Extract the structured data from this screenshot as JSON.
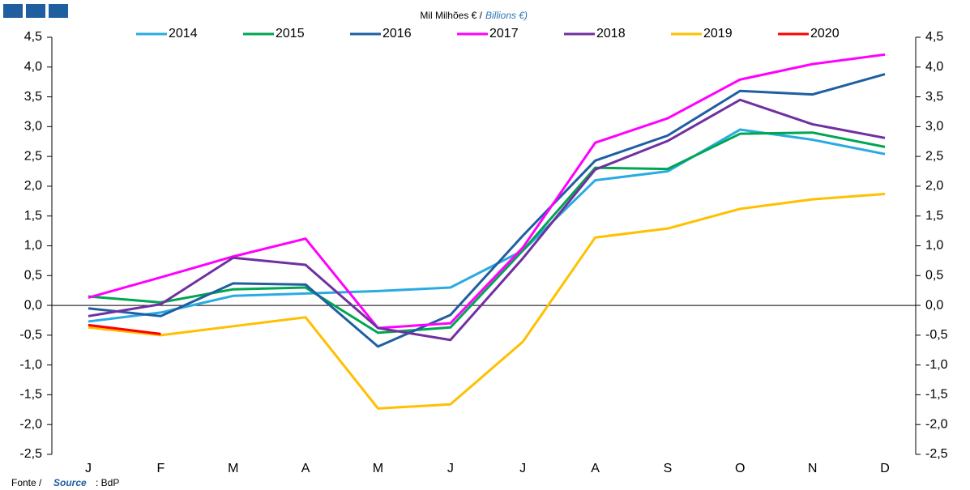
{
  "chart_data": {
    "type": "line",
    "title": "Mil Milhões € /",
    "title_en": "Billions €)",
    "source": {
      "label": "Fonte /",
      "label_en": "Source",
      "text": ": BdP"
    },
    "categories": [
      "J",
      "F",
      "M",
      "A",
      "M",
      "J",
      "J",
      "A",
      "S",
      "O",
      "N",
      "D"
    ],
    "series": [
      {
        "name": "2014",
        "color": "#29abe2",
        "values": [
          -0.27,
          -0.12,
          0.16,
          0.2,
          0.24,
          0.3,
          0.92,
          2.1,
          2.25,
          2.95,
          2.78,
          2.54
        ]
      },
      {
        "name": "2015",
        "color": "#00a651",
        "values": [
          0.15,
          0.05,
          0.27,
          0.3,
          -0.46,
          -0.37,
          0.92,
          2.31,
          2.29,
          2.88,
          2.9,
          2.66
        ]
      },
      {
        "name": "2016",
        "color": "#1f5fa0",
        "values": [
          -0.05,
          -0.18,
          0.37,
          0.35,
          -0.69,
          -0.16,
          1.17,
          2.43,
          2.85,
          3.6,
          3.54,
          3.88
        ]
      },
      {
        "name": "2017",
        "color": "#ff00ff",
        "values": [
          0.13,
          0.47,
          0.82,
          1.12,
          -0.38,
          -0.3,
          0.97,
          2.73,
          3.14,
          3.79,
          4.05,
          4.21
        ]
      },
      {
        "name": "2018",
        "color": "#7030a0",
        "values": [
          -0.18,
          0.02,
          0.8,
          0.68,
          -0.38,
          -0.58,
          0.79,
          2.28,
          2.76,
          3.45,
          3.04,
          2.81
        ]
      },
      {
        "name": "2019",
        "color": "#ffc000",
        "values": [
          -0.37,
          -0.5,
          -0.35,
          -0.2,
          -1.73,
          -1.66,
          -0.61,
          1.14,
          1.29,
          1.62,
          1.78,
          1.87
        ]
      },
      {
        "name": "2020",
        "color": "#ff0000",
        "values": [
          -0.33,
          -0.48,
          null,
          null,
          null,
          null,
          null,
          null,
          null,
          null,
          null,
          null
        ]
      }
    ],
    "ylim": [
      -2.5,
      4.5
    ],
    "yticks": [
      {
        "value": 4.5,
        "label": "4,5"
      },
      {
        "value": 4,
        "label": "4,0"
      },
      {
        "value": 3.5,
        "label": "3,5"
      },
      {
        "value": 3,
        "label": "3,0"
      },
      {
        "value": 2.5,
        "label": "2,5"
      },
      {
        "value": 2,
        "label": "2,0"
      },
      {
        "value": 1.5,
        "label": "1,5"
      },
      {
        "value": 1,
        "label": "1,0"
      },
      {
        "value": 0.5,
        "label": "0,5"
      },
      {
        "value": 0,
        "label": "0,0"
      },
      {
        "value": -0.5,
        "label": "-0,5"
      },
      {
        "value": -1,
        "label": "-1,0"
      },
      {
        "value": -1.5,
        "label": "-1,5"
      },
      {
        "value": -2,
        "label": "-2,0"
      },
      {
        "value": -2.5,
        "label": "-2,5"
      }
    ],
    "grid": false
  }
}
